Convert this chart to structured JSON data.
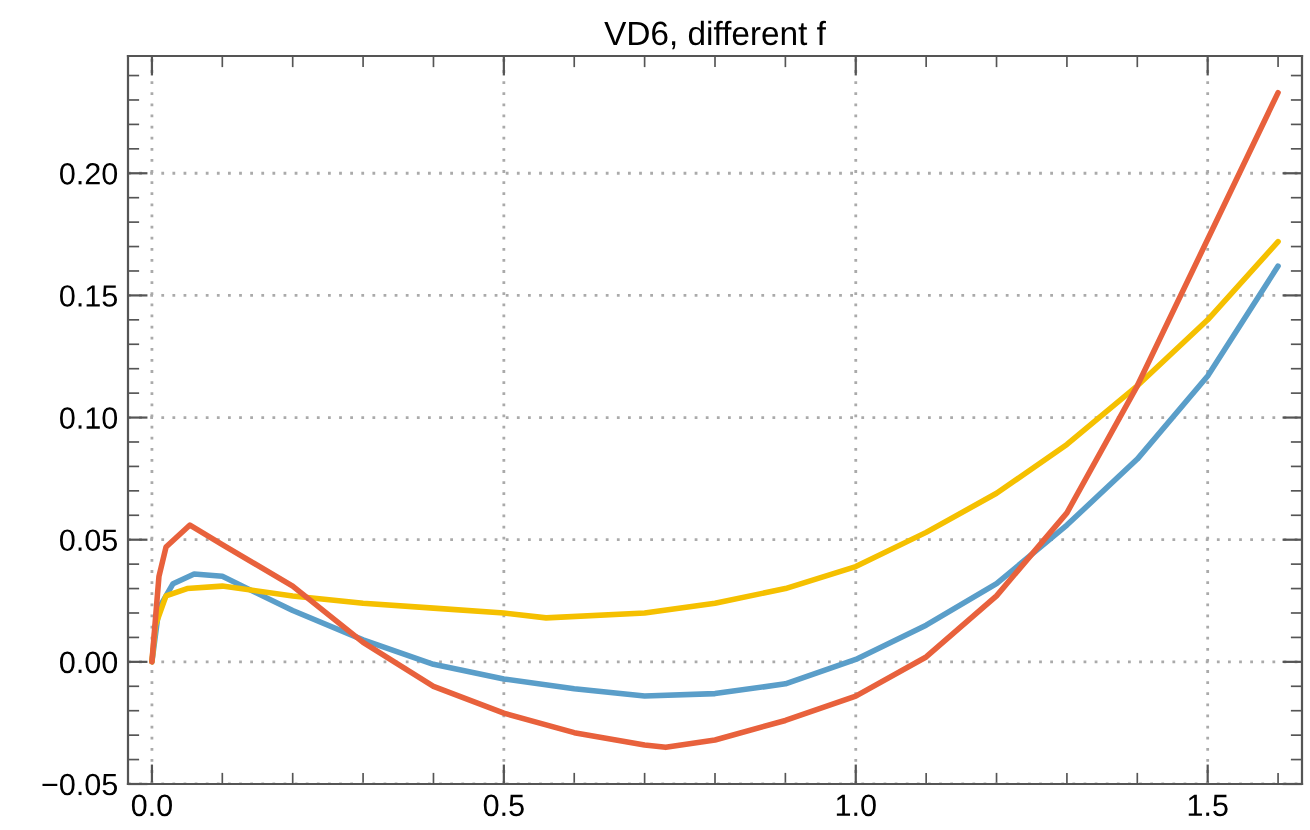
{
  "chart_data": {
    "type": "line",
    "title": "VD6, different f",
    "xlim": [
      -0.034,
      1.634
    ],
    "ylim": [
      -0.05,
      0.248
    ],
    "xticks": [
      {
        "value": 0,
        "label": "0.0"
      },
      {
        "value": 0.1,
        "label": null
      },
      {
        "value": 0.2,
        "label": null
      },
      {
        "value": 0.3,
        "label": null
      },
      {
        "value": 0.4,
        "label": null
      },
      0.5,
      {
        "value": 0.6,
        "label": null
      },
      {
        "value": 0.7,
        "label": null
      },
      {
        "value": 0.8,
        "label": null
      },
      {
        "value": 0.9,
        "label": null
      },
      {
        "value": 1,
        "label": "1.0"
      },
      {
        "value": 1.1,
        "label": null
      },
      {
        "value": 1.2,
        "label": null
      },
      {
        "value": 1.3,
        "label": null
      },
      {
        "value": 1.4,
        "label": null
      },
      1.5,
      {
        "value": 1.6,
        "label": null
      }
    ],
    "yticks": [
      {
        "value": -0.05,
        "label": "−0.05"
      },
      {
        "value": -0.04,
        "label": null
      },
      {
        "value": -0.03,
        "label": null
      },
      {
        "value": -0.02,
        "label": null
      },
      {
        "value": -0.01,
        "label": null
      },
      {
        "value": 0,
        "label": "0.00"
      },
      {
        "value": 0.01,
        "label": null
      },
      {
        "value": 0.02,
        "label": null
      },
      {
        "value": 0.03,
        "label": null
      },
      {
        "value": 0.04,
        "label": null
      },
      0.05,
      {
        "value": 0.06,
        "label": null
      },
      {
        "value": 0.07,
        "label": null
      },
      {
        "value": 0.08,
        "label": null
      },
      {
        "value": 0.09,
        "label": null
      },
      {
        "value": 0.1,
        "label": "0.10"
      },
      {
        "value": 0.11,
        "label": null
      },
      {
        "value": 0.12,
        "label": null
      },
      {
        "value": 0.13,
        "label": null
      },
      {
        "value": 0.14,
        "label": null
      },
      0.15,
      {
        "value": 0.16,
        "label": null
      },
      {
        "value": 0.17,
        "label": null
      },
      {
        "value": 0.18,
        "label": null
      },
      {
        "value": 0.19,
        "label": null
      },
      {
        "value": 0.2,
        "label": "0.20"
      },
      {
        "value": 0.21,
        "label": null
      },
      {
        "value": 0.22,
        "label": null
      },
      {
        "value": 0.23,
        "label": null
      },
      {
        "value": 0.24,
        "label": null
      }
    ],
    "grid": true,
    "line_style": "solid",
    "marker": "none",
    "series": [
      {
        "color": "#5a9ec9",
        "x": [
          0,
          0.01,
          0.03,
          0.06,
          0.1,
          0.2,
          0.3,
          0.4,
          0.5,
          0.6,
          0.7,
          0.8,
          0.9,
          1.0,
          1.1,
          1.2,
          1.3,
          1.4,
          1.5,
          1.6
        ],
        "values": [
          0,
          0.022,
          0.032,
          0.036,
          0.035,
          0.021,
          0.009,
          -0.001,
          -0.007,
          -0.011,
          -0.014,
          -0.013,
          -0.009,
          0.001,
          0.015,
          0.032,
          0.056,
          0.083,
          0.117,
          0.162
        ]
      },
      {
        "color": "#f5c000",
        "x": [
          0,
          0.005,
          0.02,
          0.05,
          0.1,
          0.2,
          0.3,
          0.4,
          0.5,
          0.56,
          0.7,
          0.8,
          0.9,
          1.0,
          1.1,
          1.2,
          1.3,
          1.4,
          1.5,
          1.6
        ],
        "values": [
          0,
          0.015,
          0.027,
          0.03,
          0.031,
          0.027,
          0.024,
          0.022,
          0.02,
          0.018,
          0.02,
          0.024,
          0.03,
          0.039,
          0.053,
          0.069,
          0.089,
          0.113,
          0.14,
          0.172
        ]
      },
      {
        "color": "#e8613c",
        "x": [
          0,
          0.01,
          0.02,
          0.054,
          0.1,
          0.2,
          0.3,
          0.4,
          0.5,
          0.6,
          0.7,
          0.73,
          0.8,
          0.9,
          1.0,
          1.1,
          1.2,
          1.3,
          1.4,
          1.5,
          1.6
        ],
        "values": [
          0,
          0.035,
          0.047,
          0.056,
          0.048,
          0.031,
          0.008,
          -0.01,
          -0.021,
          -0.029,
          -0.034,
          -0.035,
          -0.032,
          -0.024,
          -0.014,
          0.002,
          0.027,
          0.061,
          0.113,
          0.173,
          0.233
        ]
      }
    ]
  }
}
